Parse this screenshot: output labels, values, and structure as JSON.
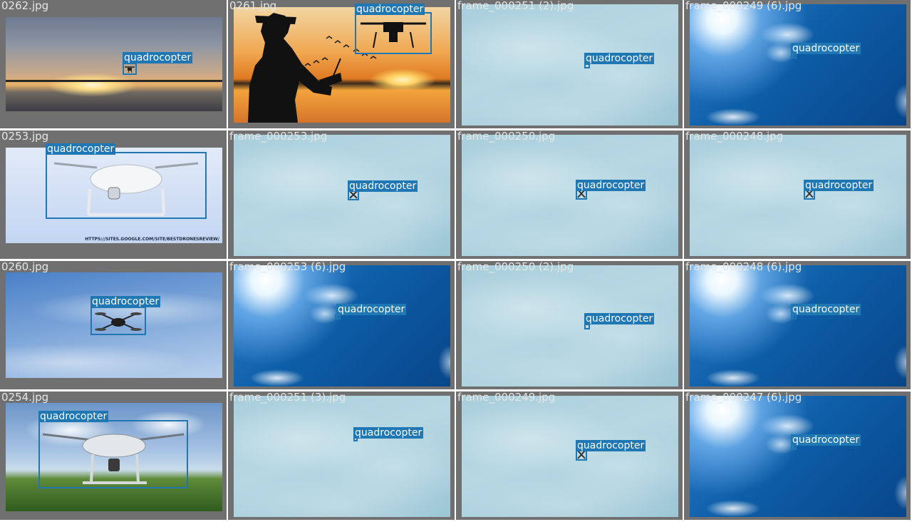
{
  "tiles": [
    {
      "filename": "0262.jpg",
      "label": "quadrocopter"
    },
    {
      "filename": "0261.jpg",
      "label": "quadrocopter"
    },
    {
      "filename": "frame_000251 (2).jpg",
      "label": "quadrocopter"
    },
    {
      "filename": "frame_000249 (6).jpg",
      "label": "quadrocopter"
    },
    {
      "filename": "0253.jpg",
      "label": "quadrocopter",
      "watermark": "HTTPS://SITES.GOOGLE.COM/SITE/BESTDRONESREVIEW/"
    },
    {
      "filename": "frame_000253.jpg",
      "label": "quadrocopter"
    },
    {
      "filename": "frame_000250.jpg",
      "label": "quadrocopter"
    },
    {
      "filename": "frame_000248.jpg",
      "label": "quadrocopter"
    },
    {
      "filename": "0260.jpg",
      "label": "quadrocopter"
    },
    {
      "filename": "frame_000253 (6).jpg",
      "label": "quadrocopter"
    },
    {
      "filename": "frame_000250 (2).jpg",
      "label": "quadrocopter"
    },
    {
      "filename": "frame_000248 (6).jpg",
      "label": "quadrocopter"
    },
    {
      "filename": "0254.jpg",
      "label": "quadrocopter"
    },
    {
      "filename": "frame_000251 (3).jpg",
      "label": "quadrocopter"
    },
    {
      "filename": "frame_000249.jpg",
      "label": "quadrocopter"
    },
    {
      "filename": "frame_000247 (6).jpg",
      "label": "quadrocopter"
    }
  ],
  "colors": {
    "box": "#1f77b4",
    "tile_border": "#707070",
    "filename_text": "#e6e6e6"
  }
}
